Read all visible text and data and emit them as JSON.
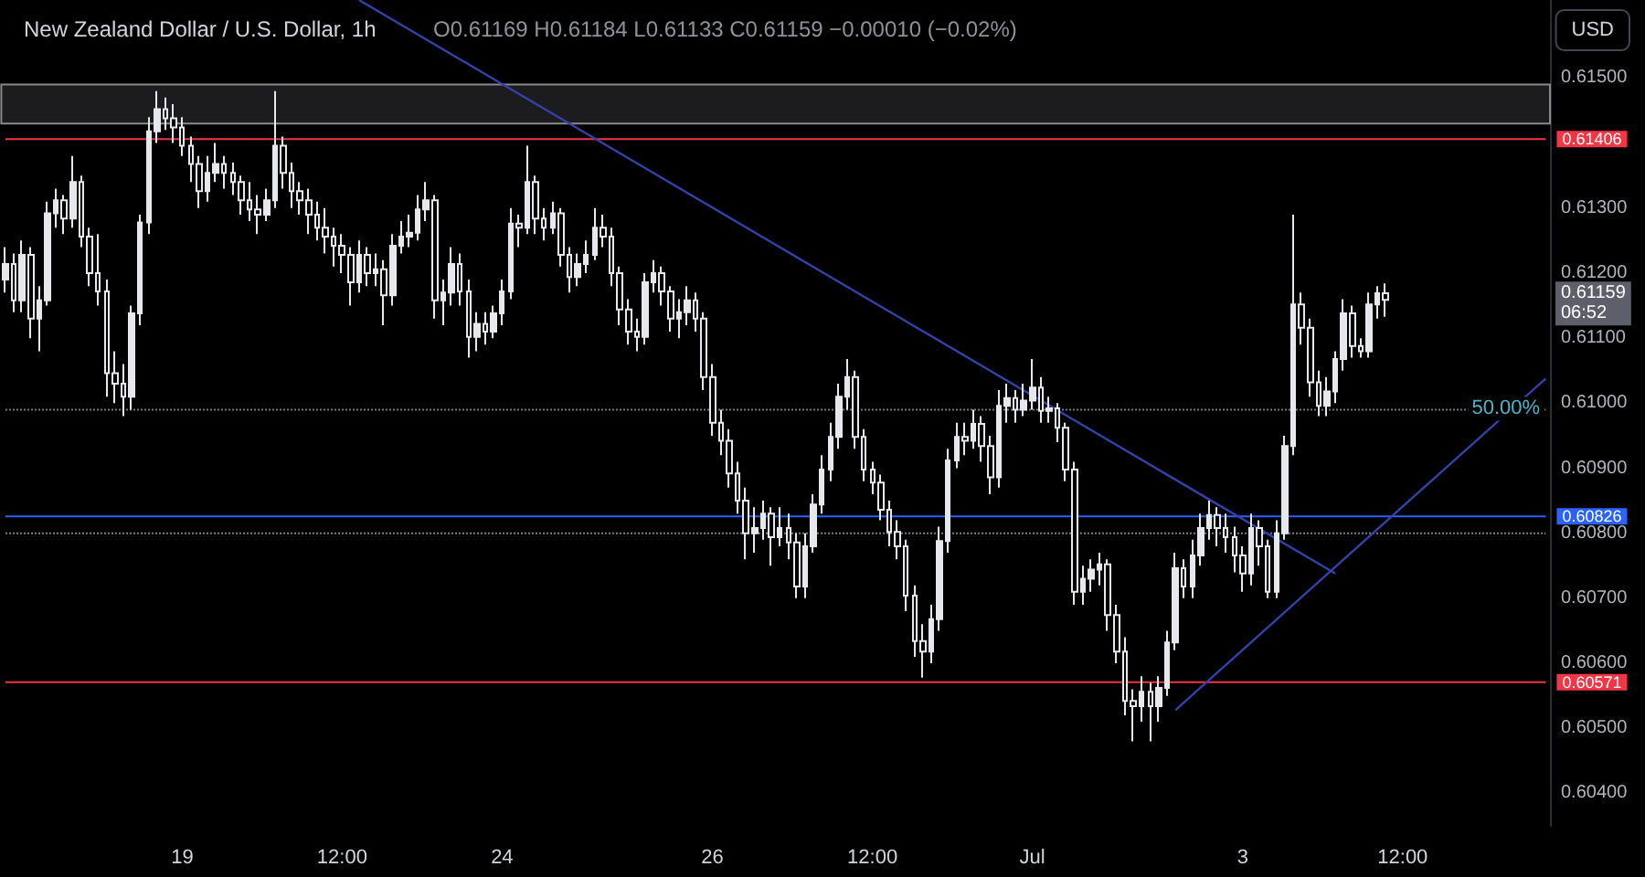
{
  "chart_data": {
    "type": "candlestick",
    "title": "New Zealand Dollar / U.S. Dollar, 1h",
    "subtitle": "O0.61169 H0.61184 L0.61133 C0.61159 −0.00010 (−0.02%)",
    "annotations": [
      "USD",
      "0.61159\n06:52",
      {
        "text": "50.00%",
        "y": 0.6099
      }
    ],
    "categories": [
      null,
      null,
      null,
      null,
      null,
      null,
      null,
      null,
      null,
      null,
      null,
      null,
      null,
      null,
      null,
      null,
      null,
      null,
      null,
      null,
      null,
      "19",
      null,
      null,
      null,
      null,
      null,
      null,
      null,
      null,
      null,
      null,
      null,
      null,
      null,
      null,
      null,
      null,
      null,
      null,
      "12:00",
      null,
      null,
      null,
      null,
      null,
      null,
      null,
      null,
      null,
      null,
      null,
      null,
      null,
      null,
      null,
      null,
      null,
      null,
      "24",
      null,
      null,
      null,
      null,
      null,
      null,
      null,
      null,
      null,
      null,
      null,
      null,
      null,
      null,
      null,
      null,
      null,
      null,
      null,
      null,
      null,
      null,
      null,
      null,
      "26",
      null,
      null,
      null,
      null,
      null,
      null,
      null,
      null,
      null,
      null,
      null,
      null,
      null,
      null,
      null,
      null,
      null,
      null,
      "12:00",
      null,
      null,
      null,
      null,
      null,
      null,
      null,
      null,
      null,
      null,
      null,
      null,
      null,
      null,
      null,
      null,
      null,
      null,
      "Jul",
      null,
      null,
      null,
      null,
      null,
      null,
      null,
      null,
      null,
      null,
      null,
      null,
      null,
      null,
      null,
      null,
      null,
      null,
      null,
      null,
      null,
      null,
      null,
      null,
      "3",
      null,
      null,
      null,
      null,
      null,
      null,
      null,
      null,
      null,
      null,
      null,
      null,
      null,
      null,
      null,
      null,
      null,
      null,
      "12:00",
      null,
      null,
      null,
      null,
      null,
      null,
      null,
      null,
      null,
      null,
      null,
      null,
      null,
      null,
      null,
      null,
      null
    ],
    "ylim": [
      0.6035,
      0.6162
    ],
    "yticks": [
      {
        "value": 0.604,
        "label": "0.60400"
      },
      {
        "value": 0.605,
        "label": "0.60500"
      },
      {
        "value": 0.606,
        "label": "0.60600"
      },
      {
        "value": 0.607,
        "label": "0.60700"
      },
      {
        "value": 0.608,
        "label": "0.60800"
      },
      {
        "value": 0.609,
        "label": "0.60900"
      },
      {
        "value": 0.61,
        "label": "0.61000"
      },
      {
        "value": 0.611,
        "label": "0.61100"
      },
      {
        "value": 0.612,
        "label": "0.61200"
      },
      {
        "value": 0.613,
        "label": "0.61300"
      },
      {
        "value": 0.615,
        "label": "0.61500"
      }
    ],
    "bands": [
      {
        "axis": "y",
        "from": 0.6143,
        "to": 0.6149,
        "color": "#1c1c1e"
      }
    ],
    "ref_lines": [
      {
        "axis": "y",
        "value": 0.61406,
        "label": "0.61406",
        "color": "#f23645"
      },
      {
        "axis": "y",
        "value": 0.60826,
        "label": "0.60826",
        "color": "#2962ff"
      },
      {
        "axis": "y",
        "value": 0.608,
        "color": "#787b86",
        "line_style": "dotted"
      },
      {
        "axis": "y",
        "value": 0.60571,
        "label": "0.60571",
        "color": "#f23645"
      },
      {
        "axis": "y",
        "value": 0.6099,
        "color": "#787b86",
        "line_style": "dotted"
      }
    ],
    "series": [
      {
        "color": "#e6e8ee",
        "ohlc": [
          [
            0.6119,
            0.6124,
            0.6117,
            0.61214
          ],
          [
            0.61214,
            0.6123,
            0.6114,
            0.61158
          ],
          [
            0.61158,
            0.6125,
            0.6114,
            0.61228
          ],
          [
            0.61228,
            0.6124,
            0.611,
            0.6113
          ],
          [
            0.6113,
            0.6118,
            0.6108,
            0.61158
          ],
          [
            0.61158,
            0.6131,
            0.6115,
            0.61292
          ],
          [
            0.61292,
            0.6133,
            0.6127,
            0.61312
          ],
          [
            0.61312,
            0.6132,
            0.6126,
            0.61284
          ],
          [
            0.61284,
            0.6138,
            0.6127,
            0.6134
          ],
          [
            0.6134,
            0.6135,
            0.6124,
            0.61256
          ],
          [
            0.61256,
            0.6127,
            0.6118,
            0.612
          ],
          [
            0.612,
            0.6126,
            0.6115,
            0.61172
          ],
          [
            0.61172,
            0.6119,
            0.6101,
            0.61046
          ],
          [
            0.61046,
            0.6108,
            0.61,
            0.6103
          ],
          [
            0.6103,
            0.6106,
            0.6098,
            0.6101
          ],
          [
            0.6101,
            0.6115,
            0.6099,
            0.61138
          ],
          [
            0.61138,
            0.6129,
            0.6112,
            0.61278
          ],
          [
            0.61278,
            0.6144,
            0.6126,
            0.61418
          ],
          [
            0.61418,
            0.6148,
            0.614,
            0.61452
          ],
          [
            0.61452,
            0.6147,
            0.6142,
            0.61438
          ],
          [
            0.61438,
            0.6146,
            0.614,
            0.61424
          ],
          [
            0.61424,
            0.6144,
            0.6138,
            0.61396
          ],
          [
            0.61396,
            0.6141,
            0.6134,
            0.61368
          ],
          [
            0.61368,
            0.6138,
            0.613,
            0.61326
          ],
          [
            0.61326,
            0.6138,
            0.6131,
            0.61354
          ],
          [
            0.61354,
            0.614,
            0.6134,
            0.61368
          ],
          [
            0.61368,
            0.6138,
            0.6133,
            0.61354
          ],
          [
            0.61354,
            0.6137,
            0.6132,
            0.6134
          ],
          [
            0.6134,
            0.6135,
            0.6129,
            0.61312
          ],
          [
            0.61312,
            0.6134,
            0.6128,
            0.61298
          ],
          [
            0.61298,
            0.6132,
            0.6126,
            0.6129
          ],
          [
            0.6129,
            0.6133,
            0.6128,
            0.61312
          ],
          [
            0.61312,
            0.6148,
            0.613,
            0.61396
          ],
          [
            0.61396,
            0.6141,
            0.6133,
            0.61354
          ],
          [
            0.61354,
            0.6137,
            0.613,
            0.61326
          ],
          [
            0.61326,
            0.6134,
            0.6129,
            0.61312
          ],
          [
            0.61312,
            0.6133,
            0.6126,
            0.6129
          ],
          [
            0.6129,
            0.6131,
            0.6125,
            0.6127
          ],
          [
            0.6127,
            0.613,
            0.6123,
            0.61256
          ],
          [
            0.61256,
            0.6127,
            0.6121,
            0.61242
          ],
          [
            0.61242,
            0.6126,
            0.612,
            0.61228
          ],
          [
            0.61228,
            0.6124,
            0.6115,
            0.61186
          ],
          [
            0.61186,
            0.6125,
            0.6117,
            0.61228
          ],
          [
            0.61228,
            0.6124,
            0.6118,
            0.612
          ],
          [
            0.612,
            0.6123,
            0.6118,
            0.61206
          ],
          [
            0.61206,
            0.6122,
            0.6112,
            0.61166
          ],
          [
            0.61166,
            0.6126,
            0.6115,
            0.61242
          ],
          [
            0.61242,
            0.6128,
            0.6123,
            0.61256
          ],
          [
            0.61256,
            0.6129,
            0.6124,
            0.61262
          ],
          [
            0.61262,
            0.6132,
            0.6125,
            0.61298
          ],
          [
            0.61298,
            0.6134,
            0.6128,
            0.61312
          ],
          [
            0.61312,
            0.6132,
            0.6113,
            0.61158
          ],
          [
            0.61158,
            0.6119,
            0.6112,
            0.6117
          ],
          [
            0.6117,
            0.6124,
            0.6115,
            0.61214
          ],
          [
            0.61214,
            0.6123,
            0.6115,
            0.61172
          ],
          [
            0.61172,
            0.6119,
            0.6107,
            0.61102
          ],
          [
            0.61102,
            0.6114,
            0.6108,
            0.61122
          ],
          [
            0.61122,
            0.6114,
            0.6109,
            0.6111
          ],
          [
            0.6111,
            0.6115,
            0.611,
            0.61138
          ],
          [
            0.61138,
            0.6119,
            0.6112,
            0.61172
          ],
          [
            0.61172,
            0.613,
            0.6116,
            0.61276
          ],
          [
            0.61276,
            0.6129,
            0.6124,
            0.6127
          ],
          [
            0.6127,
            0.61396,
            0.6126,
            0.6134
          ],
          [
            0.6134,
            0.6135,
            0.6126,
            0.61284
          ],
          [
            0.61284,
            0.613,
            0.6125,
            0.6127
          ],
          [
            0.6127,
            0.6131,
            0.6126,
            0.61292
          ],
          [
            0.61292,
            0.613,
            0.6121,
            0.61228
          ],
          [
            0.61228,
            0.6124,
            0.6117,
            0.61194
          ],
          [
            0.61194,
            0.6123,
            0.6118,
            0.61214
          ],
          [
            0.61214,
            0.6125,
            0.612,
            0.61228
          ],
          [
            0.61228,
            0.613,
            0.6122,
            0.6127
          ],
          [
            0.6127,
            0.6129,
            0.6124,
            0.61256
          ],
          [
            0.61256,
            0.6127,
            0.6118,
            0.612
          ],
          [
            0.612,
            0.6121,
            0.6112,
            0.61144
          ],
          [
            0.61144,
            0.6116,
            0.6109,
            0.6111
          ],
          [
            0.6111,
            0.6113,
            0.6108,
            0.61102
          ],
          [
            0.61102,
            0.612,
            0.6109,
            0.61186
          ],
          [
            0.61186,
            0.6122,
            0.6117,
            0.612
          ],
          [
            0.612,
            0.6121,
            0.6115,
            0.61172
          ],
          [
            0.61172,
            0.6118,
            0.6111,
            0.6113
          ],
          [
            0.6113,
            0.6116,
            0.611,
            0.6114
          ],
          [
            0.6114,
            0.6118,
            0.6112,
            0.61158
          ],
          [
            0.61158,
            0.6117,
            0.6111,
            0.6113
          ],
          [
            0.6113,
            0.6114,
            0.6102,
            0.6104
          ],
          [
            0.6104,
            0.6106,
            0.6095,
            0.6097
          ],
          [
            0.6097,
            0.6099,
            0.6092,
            0.60942
          ],
          [
            0.60942,
            0.6096,
            0.6087,
            0.60892
          ],
          [
            0.60892,
            0.6091,
            0.6083,
            0.6085
          ],
          [
            0.6085,
            0.6087,
            0.6076,
            0.608
          ],
          [
            0.608,
            0.6084,
            0.6077,
            0.60808
          ],
          [
            0.60808,
            0.6085,
            0.6079,
            0.6083
          ],
          [
            0.6083,
            0.6084,
            0.6075,
            0.60794
          ],
          [
            0.60794,
            0.6084,
            0.6078,
            0.60808
          ],
          [
            0.60808,
            0.6083,
            0.6076,
            0.60786
          ],
          [
            0.60786,
            0.608,
            0.607,
            0.60718
          ],
          [
            0.60718,
            0.608,
            0.607,
            0.6078
          ],
          [
            0.6078,
            0.6086,
            0.6077,
            0.60844
          ],
          [
            0.60844,
            0.6092,
            0.6083,
            0.60898
          ],
          [
            0.60898,
            0.6097,
            0.6088,
            0.60948
          ],
          [
            0.60948,
            0.6103,
            0.6093,
            0.6101
          ],
          [
            0.6101,
            0.61068,
            0.6099,
            0.6104
          ],
          [
            0.6104,
            0.6105,
            0.6093,
            0.60948
          ],
          [
            0.60948,
            0.6096,
            0.6088,
            0.60898
          ],
          [
            0.60898,
            0.6091,
            0.6086,
            0.60878
          ],
          [
            0.60878,
            0.6089,
            0.6082,
            0.60836
          ],
          [
            0.60836,
            0.6085,
            0.6078,
            0.60802
          ],
          [
            0.60802,
            0.6082,
            0.6076,
            0.6078
          ],
          [
            0.6078,
            0.6079,
            0.6068,
            0.60704
          ],
          [
            0.60704,
            0.6072,
            0.6061,
            0.60634
          ],
          [
            0.60634,
            0.6066,
            0.60578,
            0.60618
          ],
          [
            0.60618,
            0.6069,
            0.606,
            0.60668
          ],
          [
            0.60668,
            0.6081,
            0.6065,
            0.60788
          ],
          [
            0.60788,
            0.6093,
            0.6077,
            0.60912
          ],
          [
            0.60912,
            0.6097,
            0.609,
            0.60948
          ],
          [
            0.60948,
            0.6097,
            0.6092,
            0.60942
          ],
          [
            0.60942,
            0.6099,
            0.6093,
            0.60968
          ],
          [
            0.60968,
            0.6098,
            0.6091,
            0.60934
          ],
          [
            0.60934,
            0.6095,
            0.6086,
            0.60886
          ],
          [
            0.60886,
            0.6102,
            0.6087,
            0.60996
          ],
          [
            0.60996,
            0.6103,
            0.6097,
            0.61008
          ],
          [
            0.61008,
            0.6102,
            0.6097,
            0.6099
          ],
          [
            0.6099,
            0.6103,
            0.6098,
            0.61004
          ],
          [
            0.61004,
            0.61068,
            0.6099,
            0.61024
          ],
          [
            0.61024,
            0.6104,
            0.6097,
            0.60988
          ],
          [
            0.60988,
            0.6101,
            0.6097,
            0.60992
          ],
          [
            0.60992,
            0.61,
            0.6094,
            0.60962
          ],
          [
            0.60962,
            0.6097,
            0.6088,
            0.60898
          ],
          [
            0.60898,
            0.6091,
            0.6069,
            0.6071
          ],
          [
            0.6071,
            0.6075,
            0.6069,
            0.6073
          ],
          [
            0.6073,
            0.6076,
            0.6071,
            0.60744
          ],
          [
            0.60744,
            0.6077,
            0.6072,
            0.60752
          ],
          [
            0.60752,
            0.6076,
            0.6065,
            0.60674
          ],
          [
            0.60674,
            0.6069,
            0.606,
            0.60618
          ],
          [
            0.60618,
            0.6064,
            0.6052,
            0.60542
          ],
          [
            0.60542,
            0.6056,
            0.6048,
            0.60534
          ],
          [
            0.60534,
            0.6058,
            0.6051,
            0.60556
          ],
          [
            0.60556,
            0.6057,
            0.6048,
            0.60534
          ],
          [
            0.60534,
            0.6058,
            0.6051,
            0.60562
          ],
          [
            0.60562,
            0.6065,
            0.6055,
            0.60632
          ],
          [
            0.60632,
            0.6077,
            0.6062,
            0.60746
          ],
          [
            0.60746,
            0.6076,
            0.607,
            0.60718
          ],
          [
            0.60718,
            0.6079,
            0.607,
            0.60766
          ],
          [
            0.60766,
            0.6083,
            0.6075,
            0.60808
          ],
          [
            0.60808,
            0.6085,
            0.6079,
            0.60828
          ],
          [
            0.60828,
            0.6084,
            0.6078,
            0.60808
          ],
          [
            0.60808,
            0.6083,
            0.6077,
            0.60794
          ],
          [
            0.60794,
            0.6081,
            0.6074,
            0.60766
          ],
          [
            0.60766,
            0.6078,
            0.6071,
            0.60738
          ],
          [
            0.60738,
            0.6083,
            0.6072,
            0.60808
          ],
          [
            0.60808,
            0.6082,
            0.6075,
            0.6078
          ],
          [
            0.6078,
            0.6079,
            0.607,
            0.6071
          ],
          [
            0.6071,
            0.6082,
            0.607,
            0.608
          ],
          [
            0.608,
            0.6095,
            0.6079,
            0.60934
          ],
          [
            0.60934,
            0.6129,
            0.6092,
            0.61152
          ],
          [
            0.61152,
            0.6117,
            0.6109,
            0.61116
          ],
          [
            0.61116,
            0.6113,
            0.6101,
            0.61032
          ],
          [
            0.61032,
            0.6105,
            0.6098,
            0.60996
          ],
          [
            0.60996,
            0.6104,
            0.6098,
            0.61018
          ],
          [
            0.61018,
            0.6108,
            0.61,
            0.61068
          ],
          [
            0.61068,
            0.6116,
            0.6105,
            0.61138
          ],
          [
            0.61138,
            0.6115,
            0.6107,
            0.61088
          ],
          [
            0.61088,
            0.611,
            0.6107,
            0.6108
          ],
          [
            0.6108,
            0.6117,
            0.6107,
            0.61152
          ],
          [
            0.61152,
            0.6118,
            0.6113,
            0.61169
          ],
          [
            0.61169,
            0.61184,
            0.61133,
            0.61159
          ],
          null,
          null,
          null,
          null,
          null,
          null,
          null,
          null,
          null,
          null,
          null,
          null,
          null,
          null,
          null,
          null,
          null,
          null,
          null
        ]
      },
      {
        "type": "line",
        "color": "#3441a8",
        "values": [
          null,
          null,
          null,
          null,
          null,
          null,
          null,
          null,
          null,
          null,
          null,
          null,
          null,
          null,
          null,
          null,
          null,
          null,
          null,
          null,
          null,
          null,
          null,
          null,
          null,
          null,
          null,
          null,
          null,
          null,
          null,
          null,
          null,
          null,
          null,
          null,
          null,
          null,
          null,
          null,
          null,
          null,
          0.6162,
          null,
          null,
          null,
          null,
          null,
          null,
          null,
          null,
          null,
          null,
          null,
          null,
          null,
          null,
          null,
          null,
          null,
          null,
          null,
          null,
          null,
          null,
          null,
          null,
          null,
          null,
          null,
          null,
          null,
          null,
          null,
          null,
          null,
          null,
          null,
          null,
          null,
          null,
          null,
          null,
          null,
          null,
          null,
          null,
          null,
          null,
          null,
          null,
          null,
          null,
          null,
          null,
          null,
          null,
          null,
          null,
          null,
          null,
          null,
          null,
          null,
          null,
          null,
          null,
          null,
          null,
          null,
          null,
          null,
          null,
          null,
          null,
          null,
          null,
          null,
          null,
          null,
          null,
          null,
          null,
          null,
          null,
          null,
          null,
          null,
          null,
          null,
          null,
          null,
          null,
          null,
          null,
          null,
          null,
          null,
          null,
          null,
          null,
          null,
          null,
          null,
          null,
          null,
          null,
          null,
          null,
          null,
          null,
          null,
          null,
          null,
          null,
          null,
          null,
          null,
          0.60738,
          null,
          null,
          null,
          null,
          null,
          null,
          null,
          null,
          null,
          null,
          null,
          null,
          null,
          null,
          null,
          null,
          null,
          null,
          null,
          null,
          null,
          null,
          null,
          null,
          null
        ]
      },
      {
        "type": "line",
        "color": "#3441a8",
        "values": [
          null,
          null,
          null,
          null,
          null,
          null,
          null,
          null,
          null,
          null,
          null,
          null,
          null,
          null,
          null,
          null,
          null,
          null,
          null,
          null,
          null,
          null,
          null,
          null,
          null,
          null,
          null,
          null,
          null,
          null,
          null,
          null,
          null,
          null,
          null,
          null,
          null,
          null,
          null,
          null,
          null,
          null,
          null,
          null,
          null,
          null,
          null,
          null,
          null,
          null,
          null,
          null,
          null,
          null,
          null,
          null,
          null,
          null,
          null,
          null,
          null,
          null,
          null,
          null,
          null,
          null,
          null,
          null,
          null,
          null,
          null,
          null,
          null,
          null,
          null,
          null,
          null,
          null,
          null,
          null,
          null,
          null,
          null,
          null,
          null,
          null,
          null,
          null,
          null,
          null,
          null,
          null,
          null,
          null,
          null,
          null,
          null,
          null,
          null,
          null,
          null,
          null,
          null,
          null,
          null,
          null,
          null,
          null,
          null,
          null,
          null,
          null,
          null,
          null,
          null,
          null,
          null,
          null,
          null,
          null,
          null,
          null,
          null,
          null,
          null,
          null,
          null,
          null,
          null,
          null,
          null,
          null,
          null,
          null,
          null,
          null,
          null,
          null,
          null,
          0.60528,
          null,
          null,
          null,
          null,
          null,
          null,
          null,
          null,
          null,
          null,
          null,
          null,
          null,
          null,
          null,
          null,
          null,
          null,
          null,
          null,
          null,
          null,
          null,
          null,
          null,
          null,
          null,
          null,
          null,
          null,
          null,
          null,
          null,
          null,
          null,
          null,
          null,
          null,
          null,
          null,
          null,
          null,
          null,
          0.61038
        ]
      }
    ]
  }
}
